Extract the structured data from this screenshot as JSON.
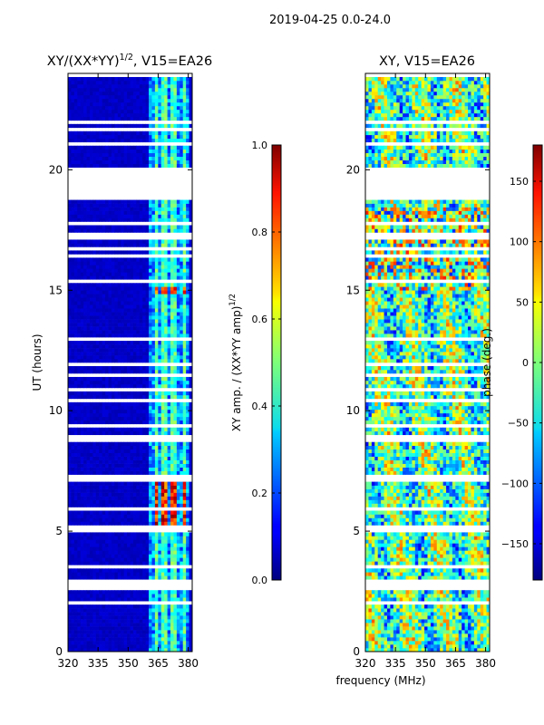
{
  "chart_data": {
    "type": "heatmap",
    "suptitle": "2019-04-25 0.0-24.0",
    "shared_xlabel": "frequency (MHz)",
    "panels": [
      {
        "id": "amp",
        "title_main": "XY/(XX*YY)",
        "title_sup": "1/2",
        "title_tail": ", V15=EA26",
        "ylabel": "UT (hours)",
        "xlim": [
          320,
          382
        ],
        "ylim": [
          0,
          24
        ],
        "xticks": [
          "320",
          "335",
          "350",
          "365",
          "380"
        ],
        "xtick_values": [
          320,
          335,
          350,
          365,
          380
        ],
        "yticks": [
          "0",
          "5",
          "10",
          "15",
          "20"
        ],
        "ytick_values": [
          0,
          5,
          10,
          15,
          20
        ],
        "colorbar": {
          "label_main": "XY amp. / (XX*YY amp)",
          "label_sup": "1/2",
          "range": [
            0,
            1
          ],
          "ticks": [
            "0.0",
            "0.2",
            "0.4",
            "0.6",
            "0.8",
            "1.0"
          ],
          "tick_values": [
            0,
            0.2,
            0.4,
            0.6,
            0.8,
            1.0
          ]
        }
      },
      {
        "id": "phase",
        "title_main": "XY, V15=EA26",
        "xlim": [
          320,
          382
        ],
        "ylim": [
          0,
          24
        ],
        "xticks": [
          "320",
          "335",
          "350",
          "365",
          "380"
        ],
        "xtick_values": [
          320,
          335,
          350,
          365,
          380
        ],
        "yticks": [
          "0",
          "5",
          "10",
          "15",
          "20"
        ],
        "ytick_values": [
          0,
          5,
          10,
          15,
          20
        ],
        "colorbar": {
          "label_main": "phase (deg.)",
          "range": [
            -180,
            180
          ],
          "ticks": [
            "−150",
            "−100",
            "−50",
            "0",
            "50",
            "100",
            "150"
          ],
          "tick_values": [
            -150,
            -100,
            -50,
            0,
            50,
            100,
            150
          ]
        }
      }
    ],
    "blank_ut_bands_hours": [
      [
        18.7,
        19.9
      ],
      [
        23.9,
        24.0
      ]
    ],
    "bright_amp_ut_bands_hours": [
      [
        14.9,
        15.2
      ],
      [
        5.2,
        7.3
      ]
    ],
    "bright_freq_channels_mhz": [
      364,
      368.5,
      373,
      378
    ]
  }
}
